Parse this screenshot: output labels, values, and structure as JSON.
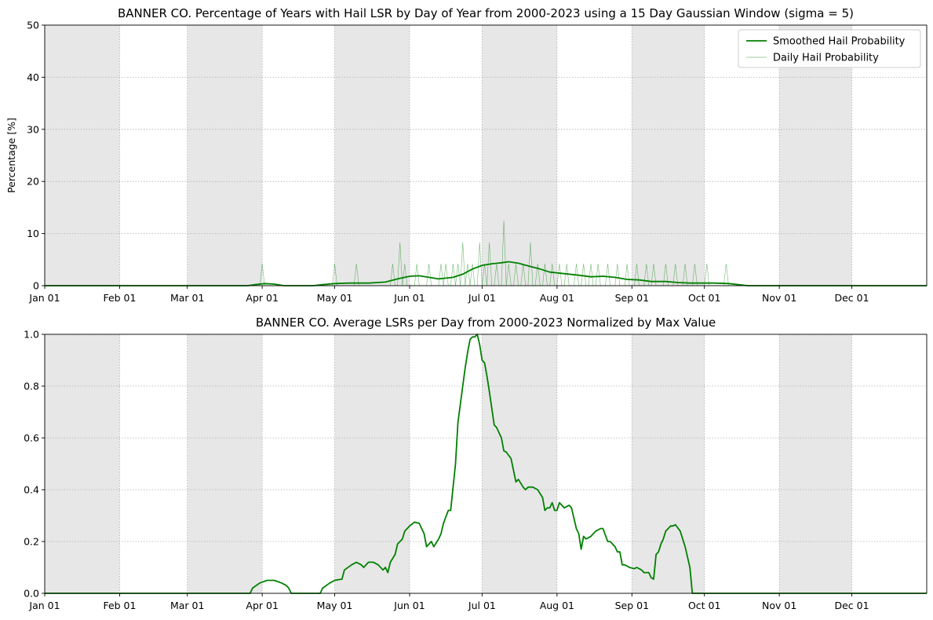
{
  "chart_data": [
    {
      "type": "line",
      "title": "BANNER CO. Percentage of Years with Hail LSR by Day of Year from 2000-2023 using a 15 Day Gaussian Window (sigma = 5)",
      "xlabel": "",
      "ylabel": "Percentage [%]",
      "x_unit": "day of year",
      "xlim": [
        1,
        366
      ],
      "ylim": [
        0,
        50
      ],
      "yticks": [
        0,
        10,
        20,
        30,
        40,
        50
      ],
      "xticks": [
        {
          "day": 1,
          "label": "Jan 01"
        },
        {
          "day": 32,
          "label": "Feb 01"
        },
        {
          "day": 60,
          "label": "Mar 01"
        },
        {
          "day": 91,
          "label": "Apr 01"
        },
        {
          "day": 121,
          "label": "May 01"
        },
        {
          "day": 152,
          "label": "Jun 01"
        },
        {
          "day": 182,
          "label": "Jul 01"
        },
        {
          "day": 213,
          "label": "Aug 01"
        },
        {
          "day": 244,
          "label": "Sep 01"
        },
        {
          "day": 274,
          "label": "Oct 01"
        },
        {
          "day": 305,
          "label": "Nov 01"
        },
        {
          "day": 335,
          "label": "Dec 01"
        }
      ],
      "grid": true,
      "shaded_months": [
        "Jan",
        "Mar",
        "May",
        "Jul",
        "Sep",
        "Nov"
      ],
      "legend_position": "top-right",
      "series": [
        {
          "name": "Smoothed Hail Probability",
          "color": "#008000",
          "points": [
            [
              1,
              0
            ],
            [
              85,
              0
            ],
            [
              88,
              0.2
            ],
            [
              92,
              0.4
            ],
            [
              96,
              0.3
            ],
            [
              100,
              0
            ],
            [
              112,
              0
            ],
            [
              116,
              0.2
            ],
            [
              121,
              0.4
            ],
            [
              127,
              0.5
            ],
            [
              135,
              0.5
            ],
            [
              142,
              0.7
            ],
            [
              147,
              1.3
            ],
            [
              152,
              1.8
            ],
            [
              156,
              1.9
            ],
            [
              160,
              1.6
            ],
            [
              164,
              1.3
            ],
            [
              170,
              1.6
            ],
            [
              174,
              2.2
            ],
            [
              178,
              3.2
            ],
            [
              182,
              3.9
            ],
            [
              186,
              4.2
            ],
            [
              190,
              4.4
            ],
            [
              193,
              4.6
            ],
            [
              197,
              4.3
            ],
            [
              201,
              3.8
            ],
            [
              206,
              3.2
            ],
            [
              210,
              2.6
            ],
            [
              216,
              2.3
            ],
            [
              222,
              2.0
            ],
            [
              227,
              1.7
            ],
            [
              232,
              1.8
            ],
            [
              237,
              1.6
            ],
            [
              242,
              1.2
            ],
            [
              247,
              1.1
            ],
            [
              252,
              0.8
            ],
            [
              258,
              0.8
            ],
            [
              263,
              0.6
            ],
            [
              268,
              0.5
            ],
            [
              273,
              0.5
            ],
            [
              278,
              0.5
            ],
            [
              284,
              0.4
            ],
            [
              288,
              0.2
            ],
            [
              292,
              0
            ],
            [
              366,
              0
            ]
          ]
        },
        {
          "name": "Daily Hail Probability",
          "color": "#008000",
          "opacity": 0.18,
          "spikes": [
            [
              91,
              4.2
            ],
            [
              121,
              4.2
            ],
            [
              130,
              4.2
            ],
            [
              145,
              4.2
            ],
            [
              148,
              8.3
            ],
            [
              150,
              4.2
            ],
            [
              155,
              4.2
            ],
            [
              160,
              4.2
            ],
            [
              165,
              4.2
            ],
            [
              167,
              4.2
            ],
            [
              170,
              4.2
            ],
            [
              172,
              4.2
            ],
            [
              174,
              8.3
            ],
            [
              176,
              4.2
            ],
            [
              178,
              4.2
            ],
            [
              181,
              8.3
            ],
            [
              183,
              4.2
            ],
            [
              185,
              8.3
            ],
            [
              188,
              4.2
            ],
            [
              191,
              12.5
            ],
            [
              193,
              4.2
            ],
            [
              196,
              4.2
            ],
            [
              199,
              4.2
            ],
            [
              202,
              8.3
            ],
            [
              205,
              4.2
            ],
            [
              208,
              4.2
            ],
            [
              211,
              4.2
            ],
            [
              214,
              4.2
            ],
            [
              217,
              4.2
            ],
            [
              221,
              4.2
            ],
            [
              224,
              4.2
            ],
            [
              227,
              4.2
            ],
            [
              230,
              4.2
            ],
            [
              234,
              4.2
            ],
            [
              238,
              4.2
            ],
            [
              242,
              4.2
            ],
            [
              246,
              4.2
            ],
            [
              250,
              4.2
            ],
            [
              253,
              4.2
            ],
            [
              258,
              4.2
            ],
            [
              262,
              4.2
            ],
            [
              266,
              4.2
            ],
            [
              270,
              4.2
            ],
            [
              275,
              4.2
            ],
            [
              283,
              4.2
            ]
          ]
        }
      ]
    },
    {
      "type": "line",
      "title": "BANNER CO. Average LSRs per Day from 2000-2023 Normalized by Max Value",
      "xlabel": "",
      "ylabel": "",
      "x_unit": "day of year",
      "xlim": [
        1,
        366
      ],
      "ylim": [
        0,
        1.0
      ],
      "yticks": [
        0.0,
        0.2,
        0.4,
        0.6,
        0.8,
        1.0
      ],
      "xticks": [
        {
          "day": 1,
          "label": "Jan 01"
        },
        {
          "day": 32,
          "label": "Feb 01"
        },
        {
          "day": 60,
          "label": "Mar 01"
        },
        {
          "day": 91,
          "label": "Apr 01"
        },
        {
          "day": 121,
          "label": "May 01"
        },
        {
          "day": 152,
          "label": "Jun 01"
        },
        {
          "day": 182,
          "label": "Jul 01"
        },
        {
          "day": 213,
          "label": "Aug 01"
        },
        {
          "day": 244,
          "label": "Sep 01"
        },
        {
          "day": 274,
          "label": "Oct 01"
        },
        {
          "day": 305,
          "label": "Nov 01"
        },
        {
          "day": 335,
          "label": "Dec 01"
        }
      ],
      "grid": true,
      "shaded_months": [
        "Jan",
        "Mar",
        "May",
        "Jul",
        "Sep",
        "Nov"
      ],
      "series": [
        {
          "color": "#008000",
          "points": [
            [
              1,
              0
            ],
            [
              86,
              0
            ],
            [
              87,
              0.02
            ],
            [
              90,
              0.04
            ],
            [
              93,
              0.05
            ],
            [
              96,
              0.05
            ],
            [
              99,
              0.04
            ],
            [
              101,
              0.03
            ],
            [
              102,
              0.02
            ],
            [
              103,
              0.0
            ],
            [
              115,
              0.0
            ],
            [
              116,
              0.02
            ],
            [
              119,
              0.04
            ],
            [
              121,
              0.05
            ],
            [
              124,
              0.055
            ],
            [
              125,
              0.09
            ],
            [
              128,
              0.11
            ],
            [
              130,
              0.12
            ],
            [
              132,
              0.11
            ],
            [
              133,
              0.1
            ],
            [
              135,
              0.12
            ],
            [
              137,
              0.12
            ],
            [
              139,
              0.11
            ],
            [
              141,
              0.09
            ],
            [
              142,
              0.1
            ],
            [
              143,
              0.08
            ],
            [
              144,
              0.12
            ],
            [
              146,
              0.15
            ],
            [
              147,
              0.19
            ],
            [
              149,
              0.21
            ],
            [
              150,
              0.24
            ],
            [
              152,
              0.26
            ],
            [
              154,
              0.275
            ],
            [
              156,
              0.27
            ],
            [
              157,
              0.25
            ],
            [
              158,
              0.23
            ],
            [
              159,
              0.18
            ],
            [
              161,
              0.2
            ],
            [
              162,
              0.18
            ],
            [
              164,
              0.21
            ],
            [
              165,
              0.23
            ],
            [
              166,
              0.27
            ],
            [
              168,
              0.32
            ],
            [
              169,
              0.32
            ],
            [
              171,
              0.5
            ],
            [
              172,
              0.66
            ],
            [
              174,
              0.8
            ],
            [
              175,
              0.87
            ],
            [
              176,
              0.93
            ],
            [
              177,
              0.98
            ],
            [
              178,
              0.99
            ],
            [
              179,
              0.99
            ],
            [
              180,
              1.0
            ],
            [
              181,
              0.96
            ],
            [
              182,
              0.9
            ],
            [
              183,
              0.89
            ],
            [
              184,
              0.84
            ],
            [
              185,
              0.78
            ],
            [
              187,
              0.65
            ],
            [
              188,
              0.64
            ],
            [
              190,
              0.6
            ],
            [
              191,
              0.55
            ],
            [
              192,
              0.545
            ],
            [
              194,
              0.52
            ],
            [
              196,
              0.43
            ],
            [
              197,
              0.44
            ],
            [
              199,
              0.41
            ],
            [
              200,
              0.4
            ],
            [
              201,
              0.41
            ],
            [
              203,
              0.41
            ],
            [
              205,
              0.4
            ],
            [
              207,
              0.37
            ],
            [
              208,
              0.32
            ],
            [
              209,
              0.33
            ],
            [
              210,
              0.33
            ],
            [
              211,
              0.35
            ],
            [
              212,
              0.32
            ],
            [
              213,
              0.32
            ],
            [
              214,
              0.35
            ],
            [
              216,
              0.33
            ],
            [
              218,
              0.34
            ],
            [
              219,
              0.33
            ],
            [
              221,
              0.25
            ],
            [
              222,
              0.23
            ],
            [
              223,
              0.17
            ],
            [
              224,
              0.22
            ],
            [
              225,
              0.21
            ],
            [
              227,
              0.22
            ],
            [
              229,
              0.24
            ],
            [
              231,
              0.25
            ],
            [
              232,
              0.25
            ],
            [
              234,
              0.2
            ],
            [
              235,
              0.2
            ],
            [
              237,
              0.18
            ],
            [
              238,
              0.16
            ],
            [
              239,
              0.16
            ],
            [
              240,
              0.11
            ],
            [
              241,
              0.11
            ],
            [
              243,
              0.1
            ],
            [
              245,
              0.095
            ],
            [
              246,
              0.1
            ],
            [
              248,
              0.09
            ],
            [
              249,
              0.08
            ],
            [
              251,
              0.08
            ],
            [
              252,
              0.06
            ],
            [
              253,
              0.055
            ],
            [
              254,
              0.15
            ],
            [
              255,
              0.16
            ],
            [
              256,
              0.19
            ],
            [
              257,
              0.21
            ],
            [
              258,
              0.24
            ],
            [
              260,
              0.26
            ],
            [
              261,
              0.26
            ],
            [
              262,
              0.265
            ],
            [
              264,
              0.24
            ],
            [
              266,
              0.18
            ],
            [
              268,
              0.1
            ],
            [
              269,
              0.0
            ],
            [
              366,
              0.0
            ]
          ]
        }
      ]
    }
  ]
}
